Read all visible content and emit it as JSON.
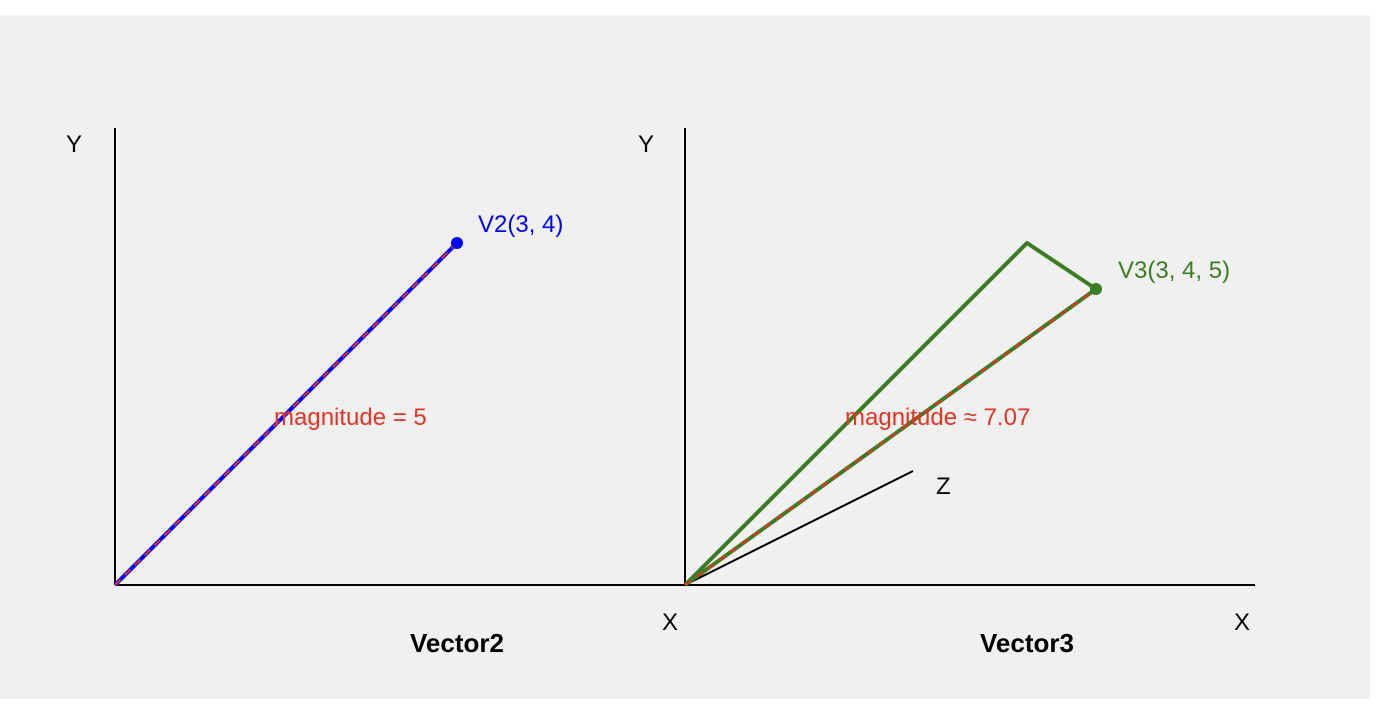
{
  "colors": {
    "background": "#f0f0f0",
    "axis": "#000000",
    "vector2": "#0000ff",
    "vector3": "#3a7d22",
    "magnitude": "#e53422"
  },
  "left": {
    "title": "Vector2",
    "y_label": "Y",
    "x_label": "X",
    "vector_label": "V2(3, 4)",
    "magnitude_label": "magnitude = 5",
    "vector": [
      3,
      4
    ]
  },
  "right": {
    "title": "Vector3",
    "y_label": "Y",
    "x_label": "X",
    "z_label": "Z",
    "vector_label": "V3(3, 4, 5)",
    "magnitude_label": "magnitude ≈ 7.07",
    "vector": [
      3,
      4,
      5
    ]
  }
}
